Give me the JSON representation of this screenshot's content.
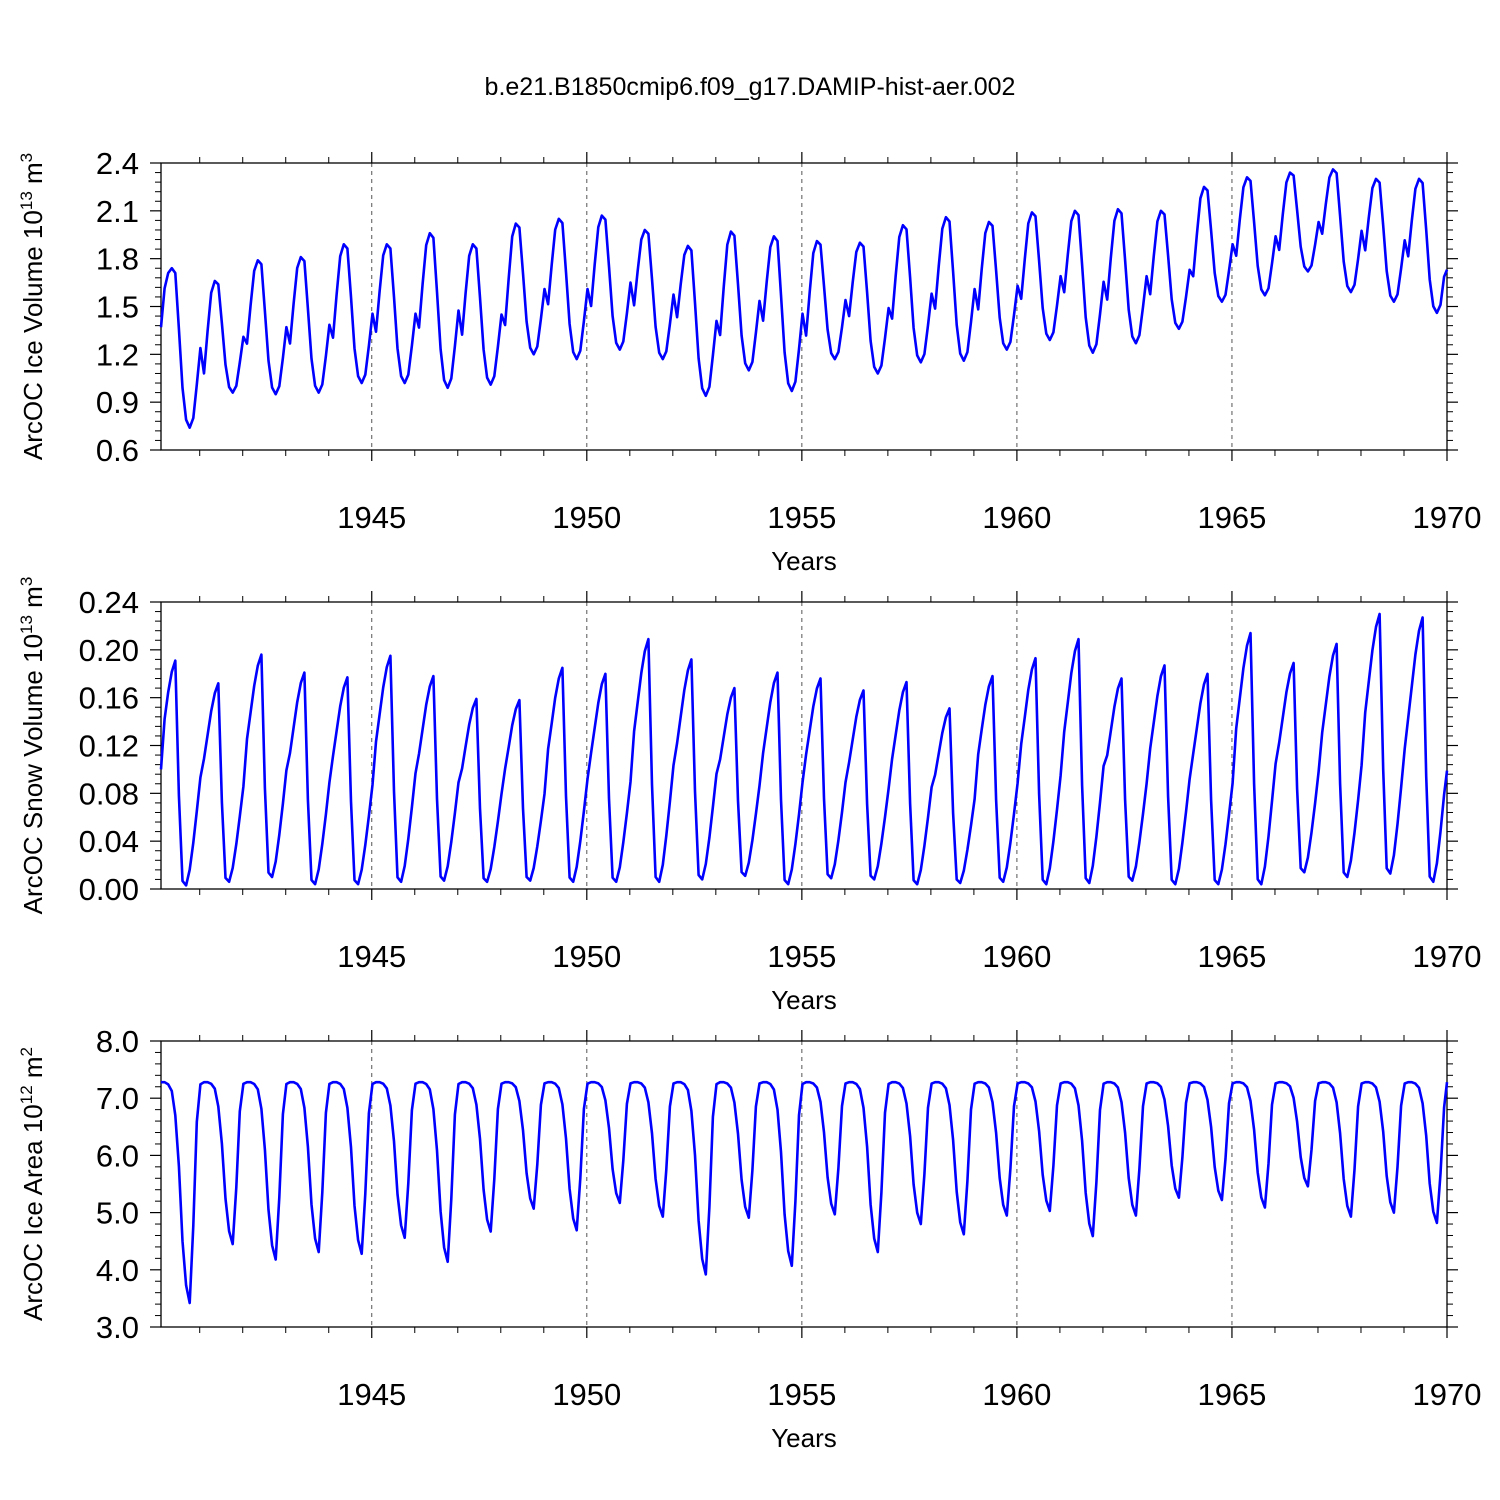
{
  "figure_title": "b.e21.B1850cmip6.f09_g17.DAMIP-hist-aer.002",
  "colors": {
    "series": "#0000ff",
    "axis": "#000000"
  },
  "chart_data": [
    {
      "id": "ice-volume",
      "type": "line",
      "title": "b.e21.B1850cmip6.f09_g17.DAMIP-hist-aer.002",
      "xlabel": "Years",
      "ylabel_main": "ArcOC Ice Volume 10",
      "ylabel_exp": "13",
      "ylabel_unit": " m",
      "ylabel_unit_exp": "3",
      "xlim": [
        1940.1,
        1970.0
      ],
      "ylim": [
        0.6,
        2.4
      ],
      "xticks": [
        1945,
        1950,
        1955,
        1960,
        1965,
        1970
      ],
      "xtick_labels": [
        "1945",
        "1950",
        "1955",
        "1960",
        "1965",
        "1970"
      ],
      "yticks": [
        0.6,
        0.9,
        1.2,
        1.5,
        1.8,
        2.1,
        2.4
      ],
      "ytick_labels": [
        "0.6",
        "0.9",
        "1.2",
        "1.5",
        "1.8",
        "2.1",
        "2.4"
      ],
      "grid": "dashed vertical at major x ticks",
      "series_name": "ArcOC Ice Volume",
      "x_start": 1940.1,
      "x_step": 0.08333,
      "cycle_maxima": [
        1.74,
        1.66,
        1.79,
        1.81,
        1.89,
        1.89,
        1.96,
        1.89,
        2.02,
        2.05,
        2.07,
        1.98,
        1.88,
        1.97,
        1.94,
        1.91,
        1.9,
        2.01,
        2.06,
        2.03,
        2.09,
        2.1,
        2.11,
        2.1,
        2.25,
        2.31,
        2.34,
        2.36,
        2.3,
        2.3
      ],
      "cycle_minima": [
        0.74,
        0.96,
        0.95,
        0.96,
        1.02,
        1.02,
        0.99,
        1.01,
        1.2,
        1.17,
        1.23,
        1.17,
        0.94,
        1.1,
        0.97,
        1.17,
        1.08,
        1.15,
        1.16,
        1.23,
        1.29,
        1.21,
        1.27,
        1.36,
        1.53,
        1.57,
        1.72,
        1.59,
        1.53,
        1.46
      ],
      "end_value": 1.73
    },
    {
      "id": "snow-volume",
      "type": "line",
      "xlabel": "Years",
      "ylabel_main": "ArcOC Snow Volume 10",
      "ylabel_exp": "13",
      "ylabel_unit": " m",
      "ylabel_unit_exp": "3",
      "xlim": [
        1940.1,
        1970.0
      ],
      "ylim": [
        0.0,
        0.24
      ],
      "xticks": [
        1945,
        1950,
        1955,
        1960,
        1965,
        1970
      ],
      "xtick_labels": [
        "1945",
        "1950",
        "1955",
        "1960",
        "1965",
        "1970"
      ],
      "yticks": [
        0.0,
        0.04,
        0.08,
        0.12,
        0.16,
        0.2,
        0.24
      ],
      "ytick_labels": [
        "0.00",
        "0.04",
        "0.08",
        "0.12",
        "0.16",
        "0.20",
        "0.24"
      ],
      "grid": "dashed vertical at major x ticks",
      "series_name": "ArcOC Snow Volume",
      "x_start": 1940.1,
      "x_step": 0.08333,
      "cycle_maxima": [
        0.191,
        0.172,
        0.196,
        0.181,
        0.177,
        0.195,
        0.178,
        0.159,
        0.158,
        0.185,
        0.18,
        0.209,
        0.192,
        0.168,
        0.181,
        0.176,
        0.166,
        0.173,
        0.151,
        0.178,
        0.193,
        0.209,
        0.176,
        0.187,
        0.18,
        0.214,
        0.189,
        0.205,
        0.23,
        0.227
      ],
      "cycle_minima": [
        0.003,
        0.006,
        0.01,
        0.004,
        0.004,
        0.006,
        0.007,
        0.006,
        0.007,
        0.006,
        0.006,
        0.006,
        0.008,
        0.011,
        0.004,
        0.009,
        0.008,
        0.004,
        0.005,
        0.006,
        0.004,
        0.005,
        0.007,
        0.004,
        0.004,
        0.004,
        0.014,
        0.01,
        0.013,
        0.006
      ],
      "start_value": 0.1,
      "end_value": 0.099
    },
    {
      "id": "ice-area",
      "type": "line",
      "xlabel": "Years",
      "ylabel_main": "ArcOC Ice Area 10",
      "ylabel_exp": "12",
      "ylabel_unit": " m",
      "ylabel_unit_exp": "2",
      "xlim": [
        1940.1,
        1970.0
      ],
      "ylim": [
        3.0,
        8.0
      ],
      "xticks": [
        1945,
        1950,
        1955,
        1960,
        1965,
        1970
      ],
      "xtick_labels": [
        "1945",
        "1950",
        "1955",
        "1960",
        "1965",
        "1970"
      ],
      "yticks": [
        3.0,
        4.0,
        5.0,
        6.0,
        7.0,
        8.0
      ],
      "ytick_labels": [
        "3.0",
        "4.0",
        "5.0",
        "6.0",
        "7.0",
        "8.0"
      ],
      "grid": "dashed vertical at major x ticks",
      "series_name": "ArcOC Ice Area",
      "x_start": 1940.1,
      "x_step": 0.08333,
      "winter_plateau": 7.28,
      "cycle_minima": [
        3.42,
        4.45,
        4.18,
        4.31,
        4.28,
        4.56,
        4.14,
        4.67,
        5.07,
        4.69,
        5.17,
        4.93,
        3.92,
        4.91,
        4.07,
        4.97,
        4.31,
        4.8,
        4.62,
        4.95,
        5.03,
        4.59,
        4.95,
        5.26,
        5.22,
        5.09,
        5.46,
        4.93,
        5.0,
        4.82
      ],
      "end_value": 7.28
    }
  ]
}
